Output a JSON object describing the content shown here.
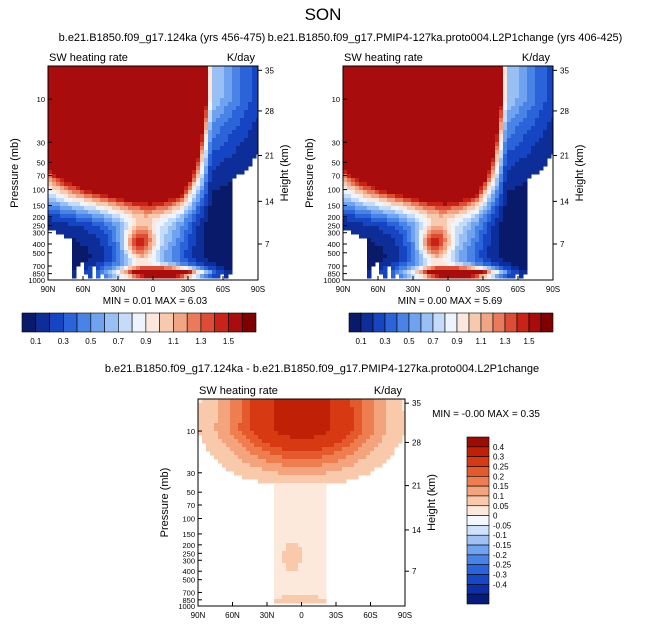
{
  "figure_title": "SON",
  "palette_abs": [
    "#0a1a6b",
    "#0d2d99",
    "#1545c2",
    "#2a64d8",
    "#4a83e6",
    "#6fa2ef",
    "#98c0f5",
    "#c4dbfa",
    "#eef4fc",
    "#fbe7dc",
    "#f7c9af",
    "#f2a585",
    "#ea7a5a",
    "#dd4c34",
    "#c92318",
    "#a80c0c",
    "#7f0000"
  ],
  "palette_diff": [
    "#061c7a",
    "#0c2fa6",
    "#1547c7",
    "#2b63db",
    "#4a83e8",
    "#6fa2f0",
    "#9ec2f6",
    "#cfe2fb",
    "#f3f8fe",
    "#fde8dc",
    "#f9c9ab",
    "#f4a47d",
    "#ee7d50",
    "#e45a2c",
    "#d73a12",
    "#c02106",
    "#9c0c00"
  ],
  "chart_data": [
    {
      "type": "heatmap",
      "name": "panel-1",
      "title": "b.e21.B1850.f09_g17.124ka (yrs 456-475)",
      "left_label": "SW heating rate",
      "right_label": "K/day",
      "xlabel": "",
      "ylabel": "Pressure (mb)",
      "ylabel_right": "Height (km)",
      "x_ticks": [
        "90N",
        "60N",
        "30N",
        "0",
        "30S",
        "60S",
        "90S"
      ],
      "y_ticks": [
        "10",
        "30",
        "50",
        "70",
        "100",
        "150",
        "200",
        "250",
        "300",
        "400",
        "500",
        "700",
        "850",
        "1000"
      ],
      "height_ticks": [
        "35",
        "28",
        "21",
        "14",
        "7"
      ],
      "stats": {
        "min_label": "MIN =",
        "min": "0.01",
        "max_label": "MAX =",
        "max": "6.03"
      },
      "colorbar_labels": [
        "0.1",
        "0.3",
        "0.5",
        "0.7",
        "0.9",
        "1.1",
        "1.3",
        "1.5"
      ],
      "levels": [
        0.1,
        0.2,
        0.3,
        0.4,
        0.5,
        0.6,
        0.7,
        0.8,
        0.9,
        1.0,
        1.1,
        1.2,
        1.3,
        1.4,
        1.5
      ],
      "zlim": [
        0.01,
        6.03
      ]
    },
    {
      "type": "heatmap",
      "name": "panel-2",
      "title": "b.e21.B1850.f09_g17.PMIP4-127ka.proto004.L2P1change (yrs 406-425)",
      "left_label": "SW heating rate",
      "right_label": "K/day",
      "xlabel": "",
      "ylabel": "Pressure (mb)",
      "ylabel_right": "Height (km)",
      "x_ticks": [
        "90N",
        "60N",
        "30N",
        "0",
        "30S",
        "60S",
        "90S"
      ],
      "y_ticks": [
        "10",
        "30",
        "50",
        "70",
        "100",
        "150",
        "200",
        "250",
        "300",
        "400",
        "500",
        "700",
        "850",
        "1000"
      ],
      "height_ticks": [
        "35",
        "28",
        "21",
        "14",
        "7"
      ],
      "stats": {
        "min_label": "MIN =",
        "min": "0.00",
        "max_label": "MAX =",
        "max": "5.69"
      },
      "colorbar_labels": [
        "0.1",
        "0.3",
        "0.5",
        "0.7",
        "0.9",
        "1.1",
        "1.3",
        "1.5"
      ],
      "levels": [
        0.1,
        0.2,
        0.3,
        0.4,
        0.5,
        0.6,
        0.7,
        0.8,
        0.9,
        1.0,
        1.1,
        1.2,
        1.3,
        1.4,
        1.5
      ],
      "zlim": [
        0.0,
        5.69
      ]
    },
    {
      "type": "heatmap",
      "name": "panel-diff",
      "title": "b.e21.B1850.f09_g17.124ka - b.e21.B1850.f09_g17.PMIP4-127ka.proto004.L2P1change",
      "left_label": "SW heating rate",
      "right_label": "K/day",
      "xlabel": "",
      "ylabel": "Pressure (mb)",
      "ylabel_right": "Height (km)",
      "x_ticks": [
        "90N",
        "60N",
        "30N",
        "0",
        "30S",
        "60S",
        "90S"
      ],
      "y_ticks": [
        "10",
        "30",
        "50",
        "70",
        "100",
        "150",
        "200",
        "250",
        "300",
        "400",
        "500",
        "700",
        "850",
        "1000"
      ],
      "height_ticks": [
        "35",
        "28",
        "21",
        "14",
        "7"
      ],
      "stats": {
        "min_label": "MIN =",
        "min": "-0.00",
        "max_label": "MAX =",
        "max": "0.35"
      },
      "colorbar_labels": [
        "0.4",
        "0.3",
        "0.25",
        "0.2",
        "0.15",
        "0.1",
        "0.05",
        "0",
        "-0.05",
        "-0.1",
        "-0.15",
        "-0.2",
        "-0.25",
        "-0.3",
        "-0.4"
      ],
      "levels": [
        -0.4,
        -0.3,
        -0.25,
        -0.2,
        -0.15,
        -0.1,
        -0.05,
        0,
        0.05,
        0.1,
        0.15,
        0.2,
        0.25,
        0.3,
        0.4
      ],
      "zlim": [
        -0.0,
        0.35
      ]
    }
  ]
}
